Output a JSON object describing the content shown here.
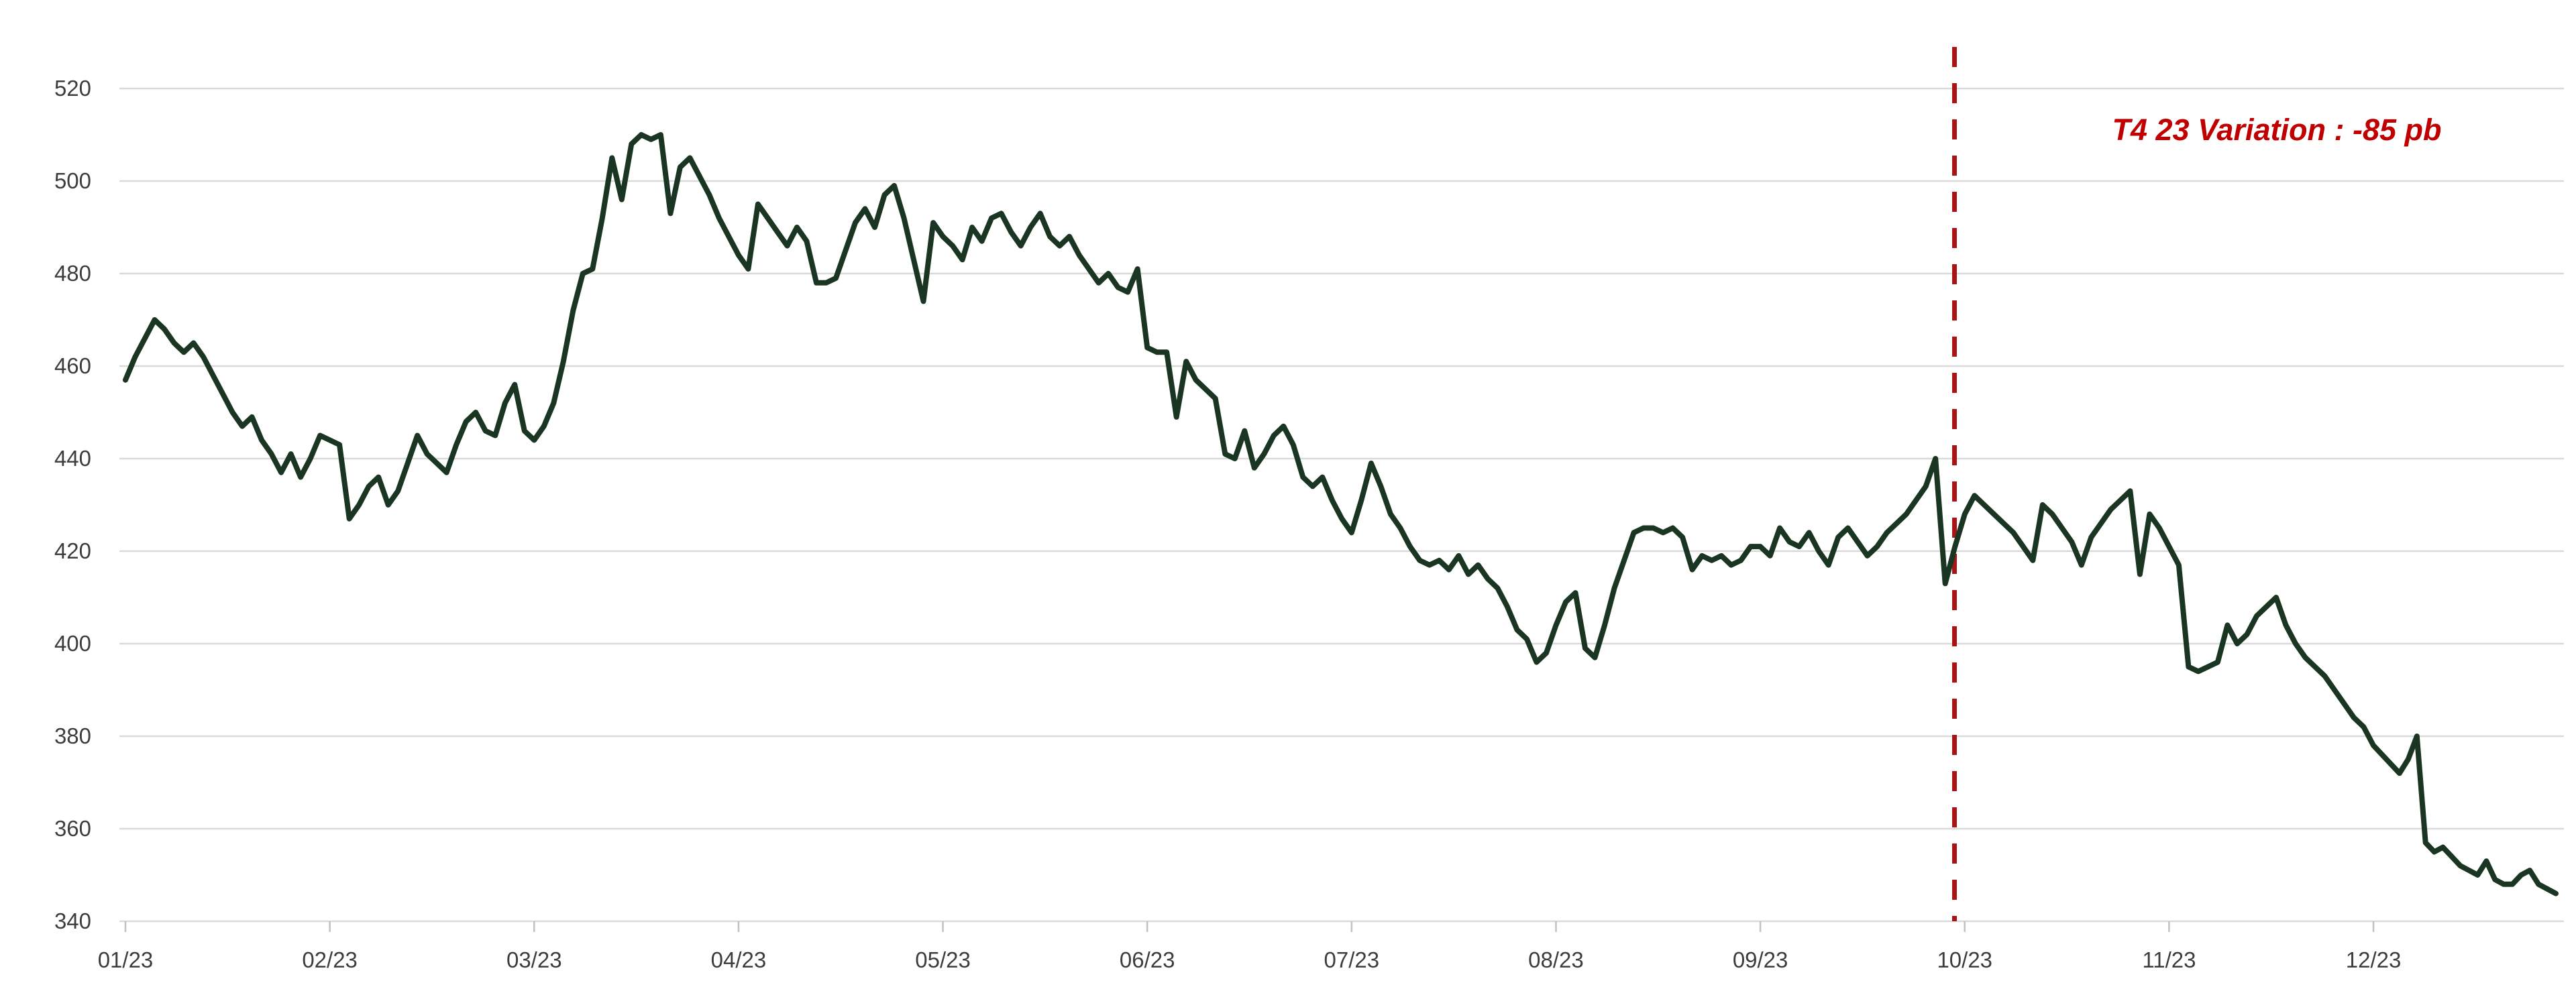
{
  "chart_data": {
    "type": "line",
    "title": "",
    "x_tick_labels": [
      "01/23",
      "02/23",
      "03/23",
      "04/23",
      "05/23",
      "06/23",
      "07/23",
      "08/23",
      "09/23",
      "10/23",
      "11/23",
      "12/23"
    ],
    "y_ticks": [
      340,
      360,
      380,
      400,
      420,
      440,
      460,
      480,
      500,
      520
    ],
    "ylim": [
      340,
      520
    ],
    "grid": "horizontal",
    "series": [
      {
        "name": "",
        "color": "#1b3523",
        "months": [
          {
            "label": "01/23",
            "values": [
              457,
              462,
              466,
              470,
              468,
              465,
              463,
              465,
              462,
              458,
              454,
              450,
              447,
              449,
              444,
              441,
              437,
              441,
              436,
              440,
              445
            ]
          },
          {
            "label": "02/23",
            "values": [
              444,
              443,
              427,
              430,
              434,
              436,
              430,
              433,
              439,
              445,
              441,
              439,
              437,
              443,
              448,
              450,
              446,
              445,
              452,
              456,
              446
            ]
          },
          {
            "label": "03/23",
            "values": [
              444,
              447,
              452,
              461,
              472,
              480,
              481,
              492,
              505,
              496,
              508,
              510,
              509,
              510,
              493,
              503,
              505,
              501,
              497,
              492,
              488
            ]
          },
          {
            "label": "04/23",
            "values": [
              484,
              481,
              495,
              492,
              489,
              486,
              490,
              487,
              478,
              478,
              479,
              485,
              491,
              494,
              490,
              497,
              499,
              492,
              483,
              474,
              491
            ]
          },
          {
            "label": "05/23",
            "values": [
              488,
              486,
              483,
              490,
              487,
              492,
              493,
              489,
              486,
              490,
              493,
              488,
              486,
              488,
              484,
              481,
              478,
              480,
              477,
              476,
              481
            ]
          },
          {
            "label": "06/23",
            "values": [
              464,
              463,
              463,
              449,
              461,
              457,
              455,
              453,
              441,
              440,
              446,
              438,
              441,
              445,
              447,
              443,
              436,
              434,
              436,
              431,
              427
            ]
          },
          {
            "label": "07/23",
            "values": [
              424,
              431,
              439,
              434,
              428,
              425,
              421,
              418,
              417,
              418,
              416,
              419,
              415,
              417,
              414,
              412,
              408,
              403,
              401,
              396,
              398
            ]
          },
          {
            "label": "08/23",
            "values": [
              404,
              409,
              411,
              399,
              397,
              404,
              412,
              418,
              424,
              425,
              425,
              424,
              425,
              423,
              416,
              419,
              418,
              419,
              417,
              418,
              421
            ]
          },
          {
            "label": "09/23",
            "values": [
              421,
              419,
              425,
              422,
              421,
              424,
              420,
              417,
              423,
              425,
              422,
              419,
              421,
              424,
              426,
              428,
              431,
              434,
              440,
              413,
              421
            ]
          },
          {
            "label": "10/23",
            "values": [
              428,
              432,
              430,
              428,
              426,
              424,
              421,
              418,
              430,
              428,
              425,
              422,
              417,
              423,
              426,
              429,
              431,
              433,
              415,
              428,
              425
            ]
          },
          {
            "label": "11/23",
            "values": [
              421,
              417,
              395,
              394,
              395,
              396,
              404,
              400,
              402,
              406,
              408,
              410,
              404,
              400,
              397,
              395,
              393,
              390,
              387,
              384,
              382
            ]
          },
          {
            "label": "12/23",
            "values": [
              378,
              376,
              374,
              372,
              375,
              380,
              357,
              355,
              356,
              354,
              352,
              351,
              350,
              353,
              349,
              348,
              348,
              350,
              351,
              348,
              347,
              346
            ]
          }
        ]
      }
    ],
    "annotation": {
      "text": "T4 23 Variation : -85 pb",
      "color": "#c00000",
      "vline": {
        "color": "#a81414",
        "style": "dashed",
        "x_months_from_jan": 8.95
      }
    }
  },
  "colors": {
    "background": "#ffffff",
    "gridline": "#d9d9d9",
    "tick": "#c2c2c2",
    "axis_label": "#3d3d3d"
  }
}
